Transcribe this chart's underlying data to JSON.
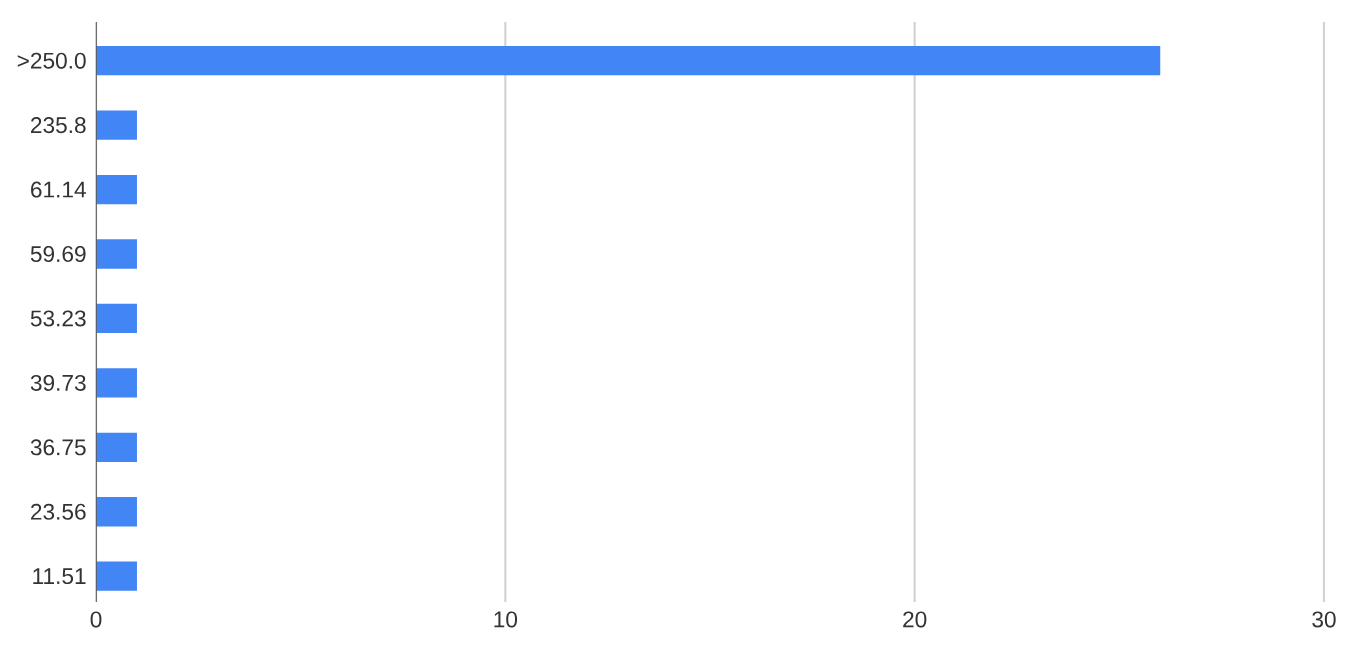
{
  "chart_data": {
    "type": "bar",
    "orientation": "horizontal",
    "categories": [
      ">250.0",
      "235.8",
      "61.14",
      "59.69",
      "53.23",
      "39.73",
      "36.75",
      "23.56",
      "11.51"
    ],
    "values": [
      26,
      1,
      1,
      1,
      1,
      1,
      1,
      1,
      1
    ],
    "color": "#4285f4",
    "xlim": [
      0,
      30
    ],
    "xticks": [
      0,
      10,
      20,
      30
    ],
    "grid": "x"
  }
}
